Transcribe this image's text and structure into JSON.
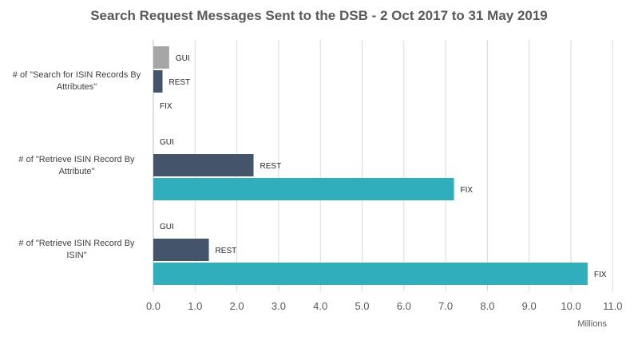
{
  "chart_data": {
    "type": "bar",
    "orientation": "horizontal",
    "title": "Search Request Messages Sent to the DSB - 2 Oct 2017 to 31 May 2019",
    "categories": [
      "# of \"Search for ISIN Records By Attributes\"",
      "# of \"Retrieve ISIN Record By Attribute\"",
      "# of \"Retrieve ISIN Record By ISIN\""
    ],
    "series": [
      {
        "name": "GUI",
        "color": "#a6a6a6",
        "values": [
          0.38,
          0,
          0
        ]
      },
      {
        "name": "REST",
        "color": "#44546a",
        "values": [
          0.22,
          2.4,
          1.33
        ]
      },
      {
        "name": "FIX",
        "color": "#31aebb",
        "values": [
          0,
          7.2,
          10.4
        ]
      }
    ],
    "xlim": [
      0,
      11
    ],
    "xticks": [
      "0.0",
      "1.0",
      "2.0",
      "3.0",
      "4.0",
      "5.0",
      "6.0",
      "7.0",
      "8.0",
      "9.0",
      "10.0",
      "11.0"
    ],
    "units_label": "Millions",
    "grid": true
  }
}
